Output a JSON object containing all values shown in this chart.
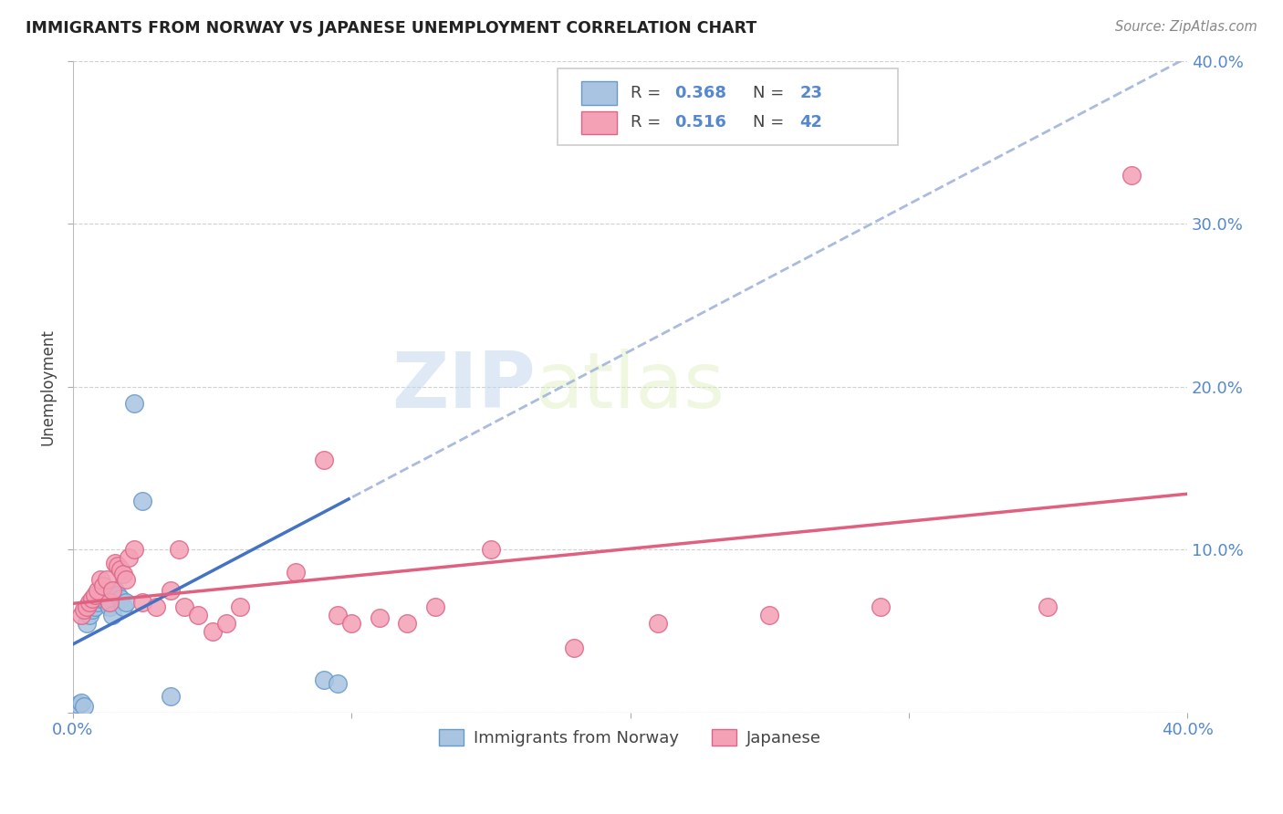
{
  "title": "IMMIGRANTS FROM NORWAY VS JAPANESE UNEMPLOYMENT CORRELATION CHART",
  "source": "Source: ZipAtlas.com",
  "ylabel": "Unemployment",
  "xlim": [
    0.0,
    0.4
  ],
  "ylim": [
    0.0,
    0.4
  ],
  "norway_color": "#a8c4e0",
  "norway_edge": "#6699cc",
  "japanese_color": "#f4a0b5",
  "japanese_edge": "#dd6688",
  "trendline_norway_solid": "#4472c4",
  "trendline_norway_dash": "#aabbdd",
  "trendline_japan_solid": "#e06080",
  "grid_color": "#d0d0d0",
  "tick_color": "#5588cc",
  "background_color": "#ffffff",
  "norway_x": [
    0.002,
    0.003,
    0.004,
    0.005,
    0.006,
    0.007,
    0.008,
    0.009,
    0.01,
    0.011,
    0.012,
    0.013,
    0.014,
    0.015,
    0.016,
    0.017,
    0.018,
    0.019,
    0.022,
    0.025,
    0.035,
    0.09,
    0.095
  ],
  "norway_y": [
    0.005,
    0.006,
    0.004,
    0.055,
    0.06,
    0.063,
    0.065,
    0.068,
    0.07,
    0.072,
    0.068,
    0.065,
    0.06,
    0.075,
    0.072,
    0.07,
    0.065,
    0.068,
    0.19,
    0.13,
    0.01,
    0.02,
    0.018
  ],
  "japan_x": [
    0.003,
    0.004,
    0.005,
    0.006,
    0.007,
    0.008,
    0.009,
    0.01,
    0.011,
    0.012,
    0.013,
    0.014,
    0.015,
    0.016,
    0.017,
    0.018,
    0.019,
    0.02,
    0.022,
    0.025,
    0.03,
    0.035,
    0.038,
    0.04,
    0.045,
    0.05,
    0.055,
    0.06,
    0.08,
    0.09,
    0.095,
    0.1,
    0.11,
    0.12,
    0.13,
    0.15,
    0.18,
    0.21,
    0.25,
    0.29,
    0.35,
    0.38
  ],
  "japan_y": [
    0.06,
    0.063,
    0.065,
    0.068,
    0.07,
    0.072,
    0.075,
    0.082,
    0.078,
    0.082,
    0.068,
    0.075,
    0.092,
    0.09,
    0.088,
    0.085,
    0.082,
    0.095,
    0.1,
    0.068,
    0.065,
    0.075,
    0.1,
    0.065,
    0.06,
    0.05,
    0.055,
    0.065,
    0.086,
    0.155,
    0.06,
    0.055,
    0.058,
    0.055,
    0.065,
    0.1,
    0.04,
    0.055,
    0.06,
    0.065,
    0.065,
    0.33
  ],
  "watermark_zip": "ZIP",
  "watermark_atlas": "atlas"
}
